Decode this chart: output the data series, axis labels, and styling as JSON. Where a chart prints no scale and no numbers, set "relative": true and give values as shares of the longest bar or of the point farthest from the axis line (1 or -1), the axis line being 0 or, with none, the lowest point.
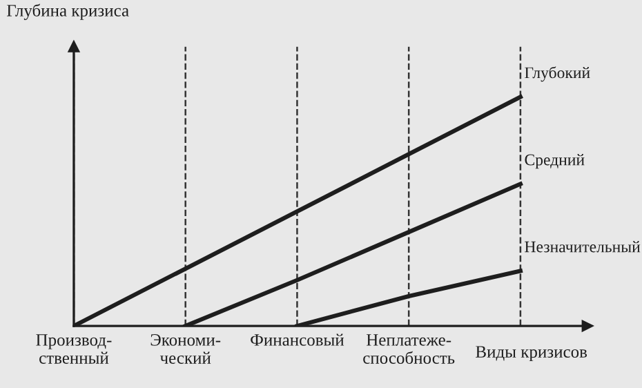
{
  "chart_data": {
    "type": "line",
    "relative": true,
    "xlabel": "Виды кризисов",
    "ylabel": "Глубина кризиса",
    "categories": [
      "Производ-\nственный",
      "Экономи-\nческий",
      "Финансовый",
      "Неплатеже-\nспособность",
      null
    ],
    "series": [
      {
        "name": "Глубокий",
        "color": "#1e1e1e",
        "values": [
          0,
          0.25,
          0.5,
          0.75,
          1
        ]
      },
      {
        "name": "Средний",
        "color": "#1e1e1e",
        "values": [
          null,
          0,
          0.2,
          0.41,
          0.62
        ]
      },
      {
        "name": "Незначительный",
        "color": "#1e1e1e",
        "values": [
          null,
          null,
          0,
          0.13,
          0.24
        ]
      }
    ],
    "grid": "x",
    "legend": false,
    "marker": "none",
    "line_style": "solid"
  }
}
